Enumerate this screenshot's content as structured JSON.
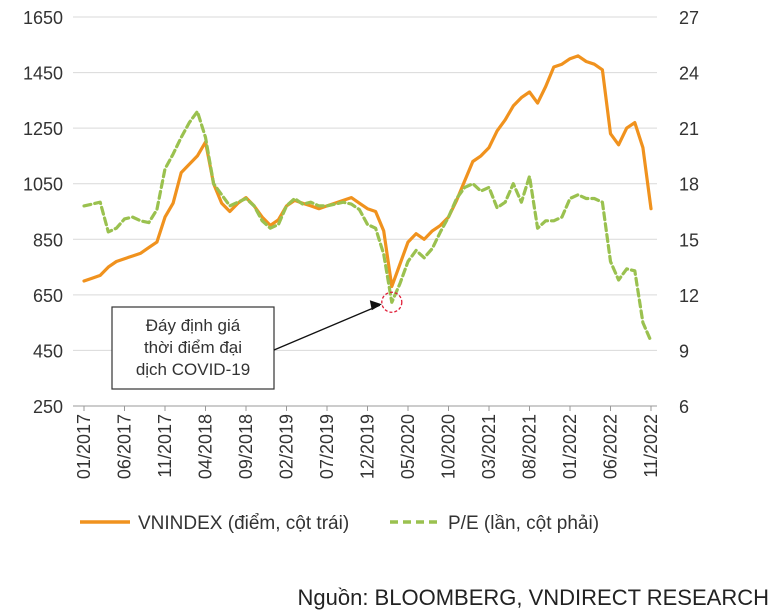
{
  "chart_data": {
    "type": "line",
    "x_tick_labels": [
      "01/2017",
      "06/2017",
      "11/2017",
      "04/2018",
      "09/2018",
      "02/2019",
      "07/2019",
      "12/2019",
      "05/2020",
      "10/2020",
      "03/2021",
      "08/2021",
      "01/2022",
      "06/2022",
      "11/2022"
    ],
    "x": [
      "01/2017",
      "02/2017",
      "03/2017",
      "04/2017",
      "05/2017",
      "06/2017",
      "07/2017",
      "08/2017",
      "09/2017",
      "10/2017",
      "11/2017",
      "12/2017",
      "01/2018",
      "02/2018",
      "03/2018",
      "04/2018",
      "05/2018",
      "06/2018",
      "07/2018",
      "08/2018",
      "09/2018",
      "10/2018",
      "11/2018",
      "12/2018",
      "01/2019",
      "02/2019",
      "03/2019",
      "04/2019",
      "05/2019",
      "06/2019",
      "07/2019",
      "08/2019",
      "09/2019",
      "10/2019",
      "11/2019",
      "12/2019",
      "01/2020",
      "02/2020",
      "03/2020",
      "04/2020",
      "05/2020",
      "06/2020",
      "07/2020",
      "08/2020",
      "09/2020",
      "10/2020",
      "11/2020",
      "12/2020",
      "01/2021",
      "02/2021",
      "03/2021",
      "04/2021",
      "05/2021",
      "06/2021",
      "07/2021",
      "08/2021",
      "09/2021",
      "10/2021",
      "11/2021",
      "12/2021",
      "01/2022",
      "02/2022",
      "03/2022",
      "04/2022",
      "05/2022",
      "06/2022",
      "07/2022",
      "08/2022",
      "09/2022",
      "10/2022",
      "11/2022"
    ],
    "y_left": {
      "ticks": [
        250,
        450,
        650,
        850,
        1050,
        1250,
        1450,
        1650
      ],
      "range": [
        250,
        1650
      ]
    },
    "y_right": {
      "ticks": [
        6,
        9,
        12,
        15,
        18,
        21,
        24,
        27
      ],
      "range": [
        6,
        27
      ]
    },
    "series": [
      {
        "name": "VNINDEX (điểm, cột trái)",
        "axis": "left",
        "color": "#f0921e",
        "style": "solid",
        "values": [
          700,
          710,
          720,
          750,
          770,
          780,
          790,
          800,
          820,
          840,
          930,
          980,
          1090,
          1120,
          1150,
          1200,
          1050,
          980,
          950,
          980,
          1000,
          970,
          930,
          900,
          920,
          970,
          990,
          980,
          970,
          960,
          970,
          980,
          990,
          1000,
          980,
          960,
          950,
          880,
          680,
          760,
          840,
          870,
          850,
          880,
          900,
          930,
          990,
          1060,
          1130,
          1150,
          1180,
          1240,
          1280,
          1330,
          1360,
          1380,
          1340,
          1400,
          1470,
          1480,
          1500,
          1510,
          1490,
          1480,
          1460,
          1230,
          1190,
          1250,
          1270,
          1180,
          960
        ]
      },
      {
        "name": "P/E (lần, cột phải)",
        "axis": "right",
        "color": "#9ac14f",
        "style": "dashed",
        "values": [
          16.8,
          16.9,
          17.0,
          15.4,
          15.6,
          16.1,
          16.2,
          16.0,
          15.9,
          16.6,
          18.8,
          19.6,
          20.5,
          21.3,
          21.9,
          20.5,
          18.0,
          17.4,
          16.8,
          17.0,
          17.2,
          16.8,
          16.0,
          15.6,
          15.8,
          16.8,
          17.2,
          16.9,
          17.0,
          16.8,
          16.8,
          16.9,
          17.0,
          16.9,
          16.6,
          15.8,
          15.6,
          14.2,
          11.6,
          12.6,
          13.8,
          14.4,
          14.0,
          14.5,
          15.4,
          16.2,
          17.2,
          17.8,
          18.0,
          17.6,
          17.8,
          16.7,
          17.0,
          18.0,
          17.0,
          18.4,
          15.6,
          16.0,
          16.0,
          16.2,
          17.2,
          17.4,
          17.2,
          17.2,
          17.0,
          13.8,
          12.8,
          13.4,
          13.3,
          10.5,
          9.5
        ]
      }
    ],
    "annotation": {
      "lines": [
        "Đáy định giá",
        "thời điểm đại",
        "dịch COVID-19"
      ],
      "target_index": 38,
      "target_axis": "right"
    },
    "grid": "horizontal",
    "legend": "bottom"
  },
  "source_text": "Nguồn: BLOOMBERG, VNDIRECT RESEARCH"
}
